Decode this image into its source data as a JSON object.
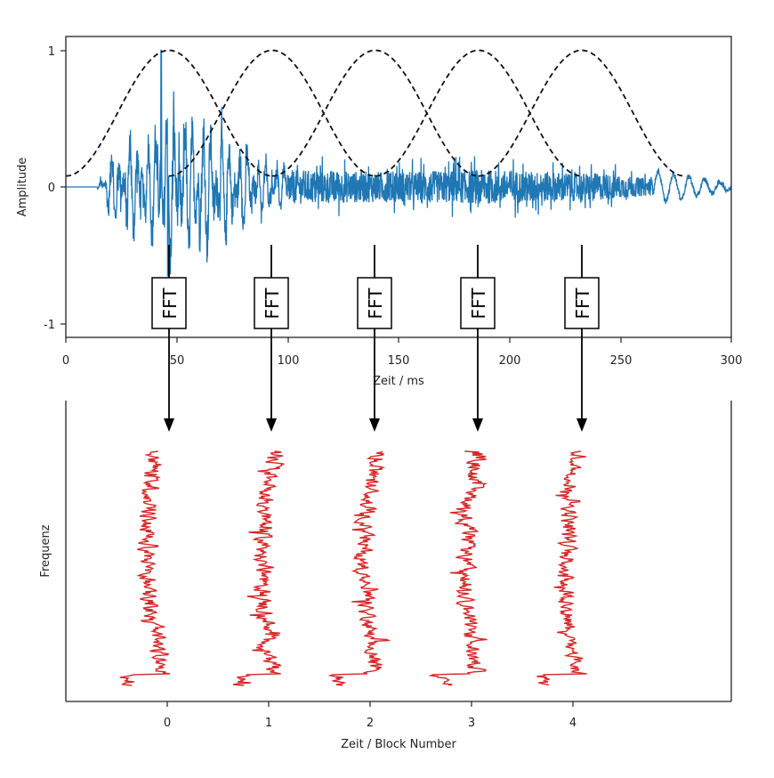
{
  "chart_data": [
    {
      "id": "time_signal",
      "type": "line",
      "title": "",
      "xlabel": "Zeit / ms",
      "ylabel": "Amplitude",
      "xlim": [
        0,
        300
      ],
      "ylim": [
        -1.1,
        1.1
      ],
      "xticks": [
        0,
        50,
        100,
        150,
        200,
        250,
        300
      ],
      "xtick_labels": [
        "0",
        "50",
        "100",
        "150",
        "200",
        "250",
        "300"
      ],
      "yticks": [
        1,
        0,
        -1
      ],
      "ytick_labels": [
        "1",
        "0",
        "-1"
      ],
      "grid": false,
      "series": [
        {
          "name": "signal",
          "color": "#1f77b4",
          "description": "Audio waveform: silent until ~14 ms, large transient bursts (peak 1.0 at ~43 ms) decaying until ~100 ms, then dense noise of amplitude ~±0.2 until ~265 ms, then low-frequency decay toward 0 at 300 ms",
          "envelope_points": [
            {
              "t": 0,
              "amp": 0.0
            },
            {
              "t": 14,
              "amp": 0.0
            },
            {
              "t": 20,
              "amp": 0.45
            },
            {
              "t": 30,
              "amp": 0.6
            },
            {
              "t": 38,
              "amp": 0.6
            },
            {
              "t": 43,
              "amp": 1.0
            },
            {
              "t": 53,
              "amp": 0.88
            },
            {
              "t": 62,
              "amp": 0.78
            },
            {
              "t": 72,
              "amp": 0.68
            },
            {
              "t": 90,
              "amp": 0.3
            },
            {
              "t": 100,
              "amp": 0.25
            },
            {
              "t": 150,
              "amp": 0.22
            },
            {
              "t": 190,
              "amp": 0.25
            },
            {
              "t": 240,
              "amp": 0.2
            },
            {
              "t": 265,
              "amp": 0.12
            },
            {
              "t": 280,
              "amp": 0.08
            },
            {
              "t": 300,
              "amp": 0.02
            }
          ]
        },
        {
          "name": "window",
          "style": "dashed",
          "color": "#000000",
          "description": "Five overlapping Hann windows (peak 1.0, floor ~0.08)",
          "window_centers_ms": [
            46.5,
            93,
            139.5,
            186,
            232.5
          ],
          "window_half_width_ms": 46.5,
          "peak": 1.0,
          "floor": 0.08
        }
      ],
      "annotations": [
        {
          "text": "FFT",
          "x_ms": 46.5
        },
        {
          "text": "FFT",
          "x_ms": 93
        },
        {
          "text": "FFT",
          "x_ms": 139.5
        },
        {
          "text": "FFT",
          "x_ms": 186
        },
        {
          "text": "FFT",
          "x_ms": 232.5
        }
      ]
    },
    {
      "id": "spectra",
      "type": "line",
      "title": "",
      "xlabel": "Zeit / Block Number",
      "ylabel": "Frequenz",
      "xticks": [
        0,
        1,
        2,
        3,
        4
      ],
      "xtick_labels": [
        "0",
        "1",
        "2",
        "3",
        "4"
      ],
      "yticks": [],
      "grid": false,
      "series": [
        {
          "name": "block 0",
          "color": "#d62728",
          "block": 0
        },
        {
          "name": "block 1",
          "color": "#d62728",
          "block": 1
        },
        {
          "name": "block 2",
          "color": "#d62728",
          "block": 2
        },
        {
          "name": "block 3",
          "color": "#d62728",
          "block": 3
        },
        {
          "name": "block 4",
          "color": "#d62728",
          "block": 4
        }
      ],
      "description": "Each block's magnitude spectrum plotted vertically (frequency on y, magnitude offset horizontally around block position)"
    }
  ],
  "top_axes": {
    "xlabel": "Zeit / ms",
    "ylabel": "Amplitude",
    "xtick_labels": [
      "0",
      "50",
      "100",
      "150",
      "200",
      "250",
      "300"
    ],
    "ytick_labels": [
      "1",
      "0",
      "-1"
    ]
  },
  "bottom_axes": {
    "xlabel": "Zeit / Block Number",
    "ylabel": "Frequenz",
    "xtick_labels": [
      "0",
      "1",
      "2",
      "3",
      "4"
    ]
  },
  "fft_boxes": [
    "FFT",
    "FFT",
    "FFT",
    "FFT",
    "FFT"
  ],
  "colors": {
    "signal": "#1f77b4",
    "window": "#000000",
    "spectrum": "#d62728",
    "axes": "#222222"
  }
}
